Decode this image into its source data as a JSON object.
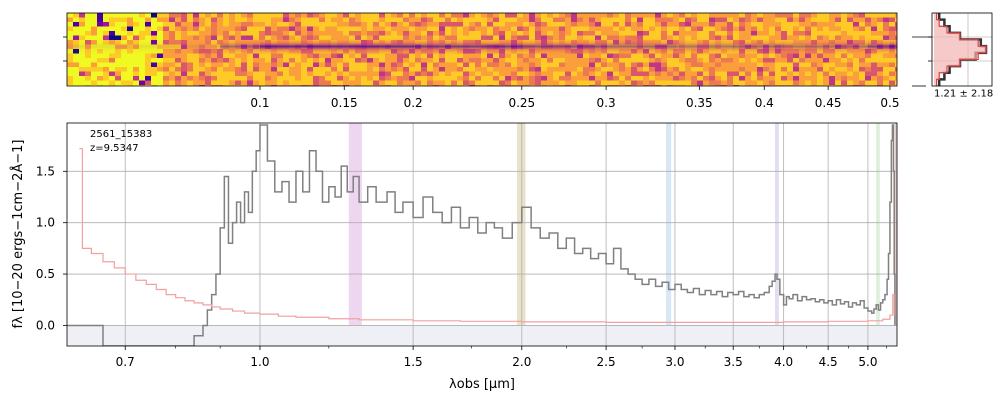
{
  "chart_data": [
    {
      "type": "heatmap",
      "panel": "spectrum-2d",
      "colormap": "plasma",
      "x_scale": "log",
      "xlim": [
        0.6,
        5.4
      ],
      "tick_labels": [
        "0.1",
        "0.15",
        "0.2",
        "0.25",
        "0.3",
        "0.35",
        "0.4",
        "0.45",
        "0.5"
      ],
      "tick_positions_um": [
        1.0,
        1.25,
        1.5,
        2.0,
        2.5,
        3.2,
        3.8,
        4.5,
        5.3
      ],
      "trace_brightness_profile": [
        [
          0.6,
          0.0
        ],
        [
          0.9,
          0.2
        ],
        [
          1.0,
          0.8
        ],
        [
          1.2,
          0.9
        ],
        [
          1.5,
          0.8
        ],
        [
          2.0,
          0.7
        ],
        [
          2.5,
          0.6
        ],
        [
          3.0,
          0.45
        ],
        [
          3.5,
          0.45
        ],
        [
          3.9,
          0.55
        ],
        [
          4.0,
          0.45
        ],
        [
          4.5,
          0.45
        ],
        [
          5.0,
          0.5
        ],
        [
          5.3,
          0.9
        ],
        [
          5.35,
          1.0
        ],
        [
          5.4,
          0.2
        ]
      ]
    },
    {
      "type": "line",
      "panel": "profile",
      "annotation": "1.21 ± 2.18",
      "series": [
        {
          "color": "#333333",
          "values": [
            0.1,
            0.2,
            0.3,
            0.5,
            0.9,
            1.0,
            0.8,
            0.5,
            0.3,
            0.2,
            0.1
          ]
        },
        {
          "color": "#d94040",
          "values": [
            0.05,
            0.1,
            0.25,
            0.5,
            0.85,
            1.0,
            0.85,
            0.5,
            0.25,
            0.1,
            0.05
          ]
        }
      ]
    },
    {
      "type": "line",
      "panel": "spectrum-1d",
      "title": "",
      "annotation_lines": [
        "2561_15383",
        "z=9.5347"
      ],
      "xlabel": "λobs [μm]",
      "ylabel": "fλ [10−20 ergs−1cm−2Å−1]",
      "xlim": [
        0.6,
        5.4
      ],
      "ylim": [
        -0.2,
        1.97
      ],
      "x_scale": "log",
      "x_ticks": [
        0.7,
        1.0,
        1.5,
        2.0,
        2.5,
        3.0,
        3.5,
        4.0,
        4.5,
        5.0
      ],
      "x_tick_labels": [
        "0.7",
        "1.0",
        "1.5",
        "2.0",
        "2.5",
        "3.0",
        "3.5",
        "4.0",
        "4.5",
        "5.0"
      ],
      "x_ticks_minor": [
        0.8,
        0.9,
        1.2,
        1.75,
        2.25,
        2.75,
        3.25,
        3.75,
        4.25,
        4.75,
        5.25
      ],
      "y_ticks": [
        0.0,
        0.5,
        1.0,
        1.5
      ],
      "y_tick_labels": [
        "0.0",
        "0.5",
        "1.0",
        "1.5"
      ],
      "grid": true,
      "line_bands": [
        {
          "x0": 1.265,
          "x1": 1.31,
          "color": "#d9a3e0"
        },
        {
          "x0": 1.975,
          "x1": 2.02,
          "color": "#c8c08a"
        },
        {
          "x0": 2.93,
          "x1": 2.97,
          "color": "#a9c9e8"
        },
        {
          "x0": 3.91,
          "x1": 3.95,
          "color": "#c3b3e0"
        },
        {
          "x0": 5.11,
          "x1": 5.16,
          "color": "#b6deb0"
        },
        {
          "x0": 5.37,
          "x1": 5.41,
          "color": "#c98a7a"
        }
      ],
      "series": [
        {
          "color": "#808080",
          "points": [
            [
              0.6,
              0.0
            ],
            [
              0.62,
              0.0
            ],
            [
              0.64,
              0.0
            ],
            [
              0.66,
              -0.2
            ],
            [
              0.68,
              -0.2
            ],
            [
              0.7,
              -0.2
            ],
            [
              0.72,
              -0.2
            ],
            [
              0.74,
              -0.2
            ],
            [
              0.76,
              -0.2
            ],
            [
              0.78,
              -0.2
            ],
            [
              0.8,
              -0.2
            ],
            [
              0.82,
              -0.2
            ],
            [
              0.84,
              -0.1
            ],
            [
              0.86,
              0.0
            ],
            [
              0.87,
              0.15
            ],
            [
              0.88,
              0.3
            ],
            [
              0.89,
              0.5
            ],
            [
              0.9,
              0.95
            ],
            [
              0.91,
              1.45
            ],
            [
              0.92,
              0.8
            ],
            [
              0.93,
              1.0
            ],
            [
              0.94,
              1.2
            ],
            [
              0.95,
              1.0
            ],
            [
              0.96,
              1.3
            ],
            [
              0.97,
              1.1
            ],
            [
              0.98,
              1.5
            ],
            [
              0.99,
              1.7
            ],
            [
              1.0,
              1.95
            ],
            [
              1.02,
              1.6
            ],
            [
              1.04,
              1.3
            ],
            [
              1.06,
              1.4
            ],
            [
              1.08,
              1.2
            ],
            [
              1.1,
              1.5
            ],
            [
              1.12,
              1.3
            ],
            [
              1.14,
              1.7
            ],
            [
              1.16,
              1.5
            ],
            [
              1.18,
              1.2
            ],
            [
              1.2,
              1.35
            ],
            [
              1.22,
              1.25
            ],
            [
              1.24,
              1.55
            ],
            [
              1.26,
              1.3
            ],
            [
              1.28,
              1.45
            ],
            [
              1.3,
              1.2
            ],
            [
              1.33,
              1.35
            ],
            [
              1.36,
              1.2
            ],
            [
              1.4,
              1.3
            ],
            [
              1.43,
              1.1
            ],
            [
              1.46,
              1.2
            ],
            [
              1.5,
              1.05
            ],
            [
              1.54,
              1.25
            ],
            [
              1.58,
              1.1
            ],
            [
              1.62,
              1.0
            ],
            [
              1.66,
              1.15
            ],
            [
              1.7,
              0.95
            ],
            [
              1.74,
              1.05
            ],
            [
              1.78,
              0.9
            ],
            [
              1.82,
              1.0
            ],
            [
              1.86,
              0.95
            ],
            [
              1.9,
              0.85
            ],
            [
              1.95,
              1.0
            ],
            [
              2.0,
              1.15
            ],
            [
              2.05,
              0.95
            ],
            [
              2.1,
              0.85
            ],
            [
              2.15,
              0.9
            ],
            [
              2.2,
              0.75
            ],
            [
              2.25,
              0.85
            ],
            [
              2.3,
              0.7
            ],
            [
              2.35,
              0.75
            ],
            [
              2.4,
              0.65
            ],
            [
              2.45,
              0.7
            ],
            [
              2.5,
              0.6
            ],
            [
              2.55,
              0.75
            ],
            [
              2.6,
              0.55
            ],
            [
              2.65,
              0.5
            ],
            [
              2.7,
              0.45
            ],
            [
              2.75,
              0.4
            ],
            [
              2.8,
              0.45
            ],
            [
              2.85,
              0.38
            ],
            [
              2.9,
              0.42
            ],
            [
              2.95,
              0.35
            ],
            [
              3.0,
              0.4
            ],
            [
              3.05,
              0.35
            ],
            [
              3.1,
              0.32
            ],
            [
              3.15,
              0.36
            ],
            [
              3.2,
              0.3
            ],
            [
              3.25,
              0.34
            ],
            [
              3.3,
              0.3
            ],
            [
              3.35,
              0.33
            ],
            [
              3.4,
              0.28
            ],
            [
              3.45,
              0.32
            ],
            [
              3.5,
              0.3
            ],
            [
              3.55,
              0.33
            ],
            [
              3.6,
              0.28
            ],
            [
              3.65,
              0.3
            ],
            [
              3.7,
              0.27
            ],
            [
              3.75,
              0.3
            ],
            [
              3.8,
              0.32
            ],
            [
              3.85,
              0.38
            ],
            [
              3.88,
              0.43
            ],
            [
              3.91,
              0.5
            ],
            [
              3.93,
              0.45
            ],
            [
              3.96,
              0.3
            ],
            [
              4.0,
              0.2
            ],
            [
              4.03,
              0.28
            ],
            [
              4.06,
              0.26
            ],
            [
              4.1,
              0.3
            ],
            [
              4.15,
              0.24
            ],
            [
              4.2,
              0.28
            ],
            [
              4.25,
              0.25
            ],
            [
              4.3,
              0.26
            ],
            [
              4.35,
              0.23
            ],
            [
              4.4,
              0.25
            ],
            [
              4.45,
              0.22
            ],
            [
              4.5,
              0.24
            ],
            [
              4.55,
              0.2
            ],
            [
              4.6,
              0.25
            ],
            [
              4.65,
              0.21
            ],
            [
              4.7,
              0.23
            ],
            [
              4.75,
              0.18
            ],
            [
              4.8,
              0.22
            ],
            [
              4.85,
              0.2
            ],
            [
              4.9,
              0.24
            ],
            [
              4.95,
              0.17
            ],
            [
              5.0,
              0.14
            ],
            [
              5.05,
              0.12
            ],
            [
              5.08,
              0.16
            ],
            [
              5.11,
              0.2
            ],
            [
              5.14,
              0.15
            ],
            [
              5.17,
              0.22
            ],
            [
              5.2,
              0.25
            ],
            [
              5.23,
              0.3
            ],
            [
              5.26,
              0.45
            ],
            [
              5.28,
              0.7
            ],
            [
              5.3,
              1.2
            ],
            [
              5.32,
              1.8
            ],
            [
              5.335,
              1.95
            ],
            [
              5.35,
              1.5
            ],
            [
              5.36,
              0.5
            ],
            [
              5.37,
              0.0
            ]
          ]
        },
        {
          "color": "#f2a0a0",
          "points": [
            [
              0.62,
              1.72
            ],
            [
              0.625,
              0.75
            ],
            [
              0.64,
              0.7
            ],
            [
              0.66,
              0.62
            ],
            [
              0.68,
              0.56
            ],
            [
              0.7,
              0.5
            ],
            [
              0.72,
              0.44
            ],
            [
              0.74,
              0.4
            ],
            [
              0.76,
              0.35
            ],
            [
              0.78,
              0.3
            ],
            [
              0.8,
              0.27
            ],
            [
              0.82,
              0.24
            ],
            [
              0.84,
              0.22
            ],
            [
              0.86,
              0.2
            ],
            [
              0.88,
              0.18
            ],
            [
              0.9,
              0.16
            ],
            [
              0.93,
              0.14
            ],
            [
              0.96,
              0.12
            ],
            [
              1.0,
              0.11
            ],
            [
              1.05,
              0.09
            ],
            [
              1.1,
              0.08
            ],
            [
              1.2,
              0.065
            ],
            [
              1.3,
              0.055
            ],
            [
              1.5,
              0.045
            ],
            [
              1.7,
              0.04
            ],
            [
              2.0,
              0.035
            ],
            [
              2.5,
              0.03
            ],
            [
              3.0,
              0.03
            ],
            [
              3.5,
              0.03
            ],
            [
              4.0,
              0.035
            ],
            [
              4.5,
              0.04
            ],
            [
              5.0,
              0.045
            ],
            [
              5.2,
              0.06
            ],
            [
              5.3,
              0.1
            ],
            [
              5.34,
              0.3
            ],
            [
              5.36,
              0.1
            ]
          ]
        }
      ]
    }
  ]
}
